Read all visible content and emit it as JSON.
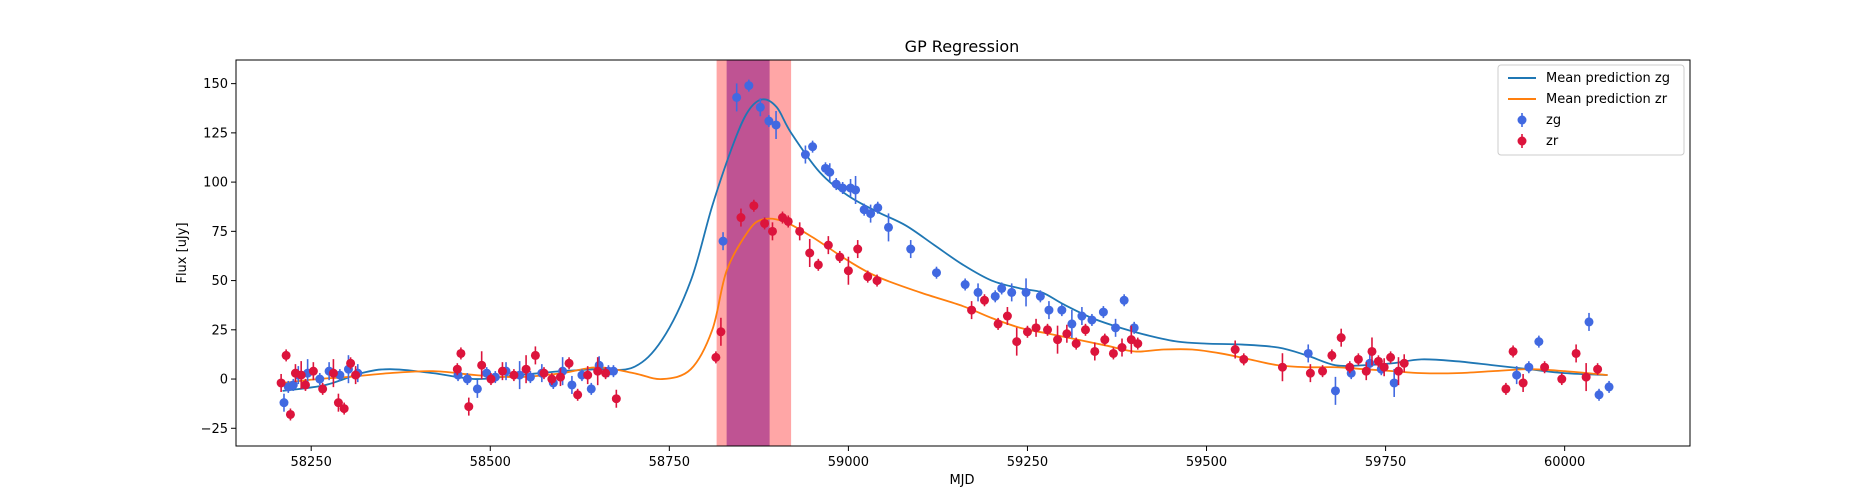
{
  "chart_data": {
    "type": "scatter",
    "title": "GP Regression",
    "xlabel": "MJD",
    "ylabel": "Flux [uJy]",
    "xlim": [
      58145,
      60175
    ],
    "ylim": [
      -34,
      162
    ],
    "xticks": [
      58250,
      58500,
      58750,
      59000,
      59250,
      59500,
      59750,
      60000
    ],
    "xtick_labels": [
      "58250",
      "58500",
      "58750",
      "59000",
      "59250",
      "59500",
      "59750",
      "60000"
    ],
    "yticks": [
      -25,
      0,
      25,
      50,
      75,
      100,
      125,
      150
    ],
    "ytick_labels": [
      "−25",
      "0",
      "25",
      "50",
      "75",
      "100",
      "125",
      "150"
    ],
    "grid": false,
    "legend_position": "top-right",
    "legend": [
      "Mean prediction zg",
      "Mean prediction zr",
      "zg",
      "zr"
    ],
    "colors": {
      "zg_line": "#1f77b4",
      "zr_line": "#ff7f0e",
      "zg_points": "#4169e1",
      "zr_points": "#dc143c",
      "band_outer": "#ff0000",
      "band_inner": "#800080"
    },
    "shaded_regions": [
      {
        "x0": 58816,
        "x1": 58920,
        "color": "#ff0000",
        "alpha": 0.35
      },
      {
        "x0": 58830,
        "x1": 58890,
        "color": "#800080",
        "alpha": 0.5
      }
    ],
    "series": [
      {
        "name": "Mean prediction zg",
        "type": "line",
        "x": [
          58210,
          58270,
          58320,
          58360,
          58420,
          58480,
          58540,
          58600,
          58650,
          58700,
          58740,
          58780,
          58810,
          58840,
          58860,
          58880,
          58900,
          58920,
          58960,
          59000,
          59040,
          59080,
          59120,
          59160,
          59200,
          59240,
          59270,
          59300,
          59340,
          59380,
          59420,
          59460,
          59500,
          59550,
          59600,
          59640,
          59680,
          59720,
          59760,
          59800,
          59850,
          59900,
          59950,
          60000,
          60060
        ],
        "y": [
          -6,
          -3,
          3,
          5,
          3,
          0,
          2,
          4,
          5,
          6,
          20,
          50,
          88,
          120,
          136,
          142,
          138,
          125,
          105,
          93,
          85,
          78,
          68,
          58,
          50,
          46,
          44,
          38,
          31,
          26,
          22,
          19,
          18,
          17.5,
          16,
          12,
          7,
          7,
          8,
          10,
          9,
          7,
          5,
          3,
          2
        ]
      },
      {
        "name": "Mean prediction zr",
        "type": "line",
        "x": [
          58210,
          58260,
          58300,
          58360,
          58420,
          58480,
          58540,
          58600,
          58650,
          58700,
          58740,
          58780,
          58810,
          58830,
          58860,
          58880,
          58910,
          58950,
          59000,
          59040,
          59100,
          59160,
          59200,
          59240,
          59280,
          59320,
          59360,
          59400,
          59440,
          59480,
          59520,
          59560,
          59600,
          59640,
          59680,
          59720,
          59760,
          59800,
          59850,
          59900,
          59950,
          60000,
          60060
        ],
        "y": [
          -2,
          0,
          1,
          3,
          4,
          2,
          1,
          3,
          6,
          3,
          0,
          5,
          25,
          55,
          75,
          81,
          80,
          72,
          60,
          52,
          44,
          37,
          31,
          26,
          23,
          20,
          17,
          14,
          15,
          15,
          13,
          10,
          7,
          6,
          6,
          5,
          4,
          3,
          3,
          4,
          5,
          4,
          2
        ]
      },
      {
        "name": "zg",
        "type": "scatter",
        "x": [
          58212,
          58218,
          58225,
          58232,
          58245,
          58262,
          58275,
          58290,
          58302,
          58315,
          58455,
          58468,
          58482,
          58495,
          58507,
          58522,
          58541,
          58556,
          58572,
          58588,
          58601,
          58614,
          58628,
          58641,
          58652,
          58665,
          58672,
          58825,
          58844,
          58861,
          58877,
          58889,
          58899,
          58940,
          58950,
          58968,
          58974,
          58983,
          58992,
          59003,
          59010,
          59022,
          59031,
          59041,
          59056,
          59087,
          59123,
          59163,
          59181,
          59205,
          59214,
          59228,
          59248,
          59268,
          59280,
          59298,
          59312,
          59326,
          59340,
          59356,
          59373,
          59385,
          59399,
          59642,
          59680,
          59702,
          59728,
          59744,
          59762,
          59933,
          59950,
          59964,
          60034,
          60048,
          60062
        ],
        "y": [
          -12,
          -4,
          -3,
          2,
          3,
          0,
          4,
          2,
          5,
          3,
          2,
          0,
          -5,
          3,
          1,
          4,
          2,
          1,
          3,
          -2,
          4,
          -3,
          2,
          -5,
          7,
          4,
          4,
          70,
          143,
          149,
          138,
          131,
          129,
          114,
          118,
          107,
          105,
          99,
          97,
          97,
          96,
          86,
          84,
          87,
          77,
          66,
          54,
          48,
          44,
          42,
          46,
          44,
          44,
          42,
          35,
          35,
          28,
          32,
          30,
          34,
          26,
          40,
          26,
          13,
          -6,
          3,
          8,
          5,
          -2,
          2,
          6,
          19,
          29,
          -8,
          -4
        ]
      },
      {
        "name": "zr",
        "type": "scatter",
        "x": [
          58208,
          58215,
          58221,
          58228,
          58236,
          58242,
          58253,
          58266,
          58281,
          58288,
          58296,
          58305,
          58312,
          58454,
          58459,
          58470,
          58488,
          58501,
          58517,
          58533,
          58550,
          58563,
          58575,
          58586,
          58598,
          58610,
          58622,
          58636,
          58650,
          58661,
          58676,
          58815,
          58822,
          58850,
          58868,
          58883,
          58894,
          58908,
          58916,
          58932,
          58946,
          58958,
          58972,
          58988,
          59000,
          59013,
          59027,
          59040,
          59172,
          59190,
          59209,
          59222,
          59235,
          59250,
          59262,
          59278,
          59292,
          59305,
          59318,
          59331,
          59344,
          59358,
          59370,
          59382,
          59395,
          59404,
          59540,
          59552,
          59606,
          59645,
          59662,
          59675,
          59688,
          59700,
          59712,
          59723,
          59731,
          59740,
          59748,
          59757,
          59768,
          59776,
          59918,
          59928,
          59942,
          59972,
          59996,
          60016,
          60030,
          60046
        ],
        "y": [
          -2,
          12,
          -18,
          3,
          2,
          -3,
          4,
          -5,
          3,
          -12,
          -15,
          8,
          2,
          5,
          13,
          -14,
          7,
          0,
          4,
          2,
          5,
          12,
          3,
          0,
          1,
          8,
          -8,
          2,
          4,
          3,
          -10,
          11,
          24,
          82,
          88,
          79,
          75,
          82,
          80,
          75,
          64,
          58,
          68,
          62,
          55,
          66,
          52,
          50,
          35,
          40,
          28,
          32,
          19,
          24,
          26,
          25,
          20,
          23,
          18,
          25,
          14,
          20,
          13,
          16,
          20,
          18,
          15,
          10,
          6,
          3,
          4,
          12,
          21,
          6,
          10,
          4,
          14,
          9,
          6,
          11,
          4,
          8,
          -5,
          14,
          -2,
          6,
          0,
          13,
          1,
          5
        ]
      }
    ]
  }
}
